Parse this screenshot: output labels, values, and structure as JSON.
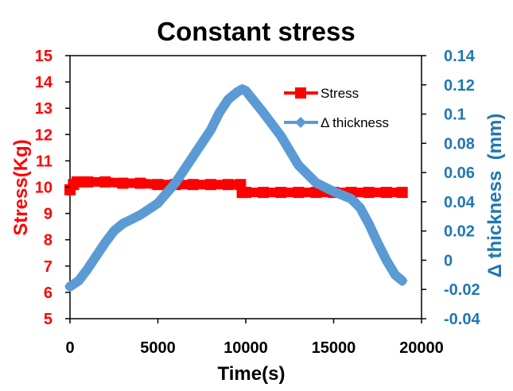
{
  "chart_data": {
    "type": "line",
    "title": "Constant stress",
    "xlabel": "Time(s)",
    "ylabel": "Stress(Kg)",
    "y2label": "Δ thickness  (mm)",
    "xlim": [
      0,
      20000
    ],
    "ylim": [
      5,
      15
    ],
    "y2lim": [
      -0.04,
      0.14
    ],
    "x_ticks": [
      "0",
      "5000",
      "10000",
      "15000",
      "20000"
    ],
    "y_ticks": [
      "5",
      "6",
      "7",
      "8",
      "9",
      "10",
      "11",
      "12",
      "13",
      "14",
      "15"
    ],
    "y2_ticks": [
      "-0.04",
      "-0.02",
      "0",
      "0.02",
      "0.04",
      "0.06",
      "0.08",
      "0.1",
      "0.12",
      "0.14"
    ],
    "legend_position": "top-right",
    "colors": {
      "stress": "#ff0000",
      "thickness": "#5b9bd5",
      "axis_left": "#ff0000",
      "axis_right": "#1f77b4"
    },
    "series": [
      {
        "name": "Stress",
        "axis": "left",
        "marker": "square",
        "x": [
          0,
          200,
          400,
          1000,
          2000,
          3000,
          4000,
          5000,
          6000,
          7000,
          8000,
          9000,
          9700,
          9800,
          10000,
          11000,
          12000,
          13000,
          14000,
          15000,
          16000,
          17000,
          18000,
          18900
        ],
        "values": [
          9.9,
          10.1,
          10.2,
          10.2,
          10.2,
          10.15,
          10.15,
          10.1,
          10.1,
          10.1,
          10.1,
          10.1,
          10.1,
          9.8,
          9.8,
          9.8,
          9.8,
          9.8,
          9.8,
          9.8,
          9.8,
          9.8,
          9.8,
          9.8
        ]
      },
      {
        "name": "Δ thickness",
        "axis": "right",
        "marker": "diamond",
        "x": [
          0,
          500,
          1000,
          1500,
          2000,
          2500,
          3000,
          4000,
          5000,
          6000,
          7000,
          8000,
          8500,
          9000,
          9500,
          9800,
          10000,
          11000,
          12000,
          13000,
          14000,
          15000,
          16000,
          16500,
          17000,
          17500,
          18000,
          18500,
          18900
        ],
        "values": [
          -0.018,
          -0.014,
          -0.006,
          0.003,
          0.012,
          0.02,
          0.025,
          0.031,
          0.039,
          0.053,
          0.071,
          0.089,
          0.101,
          0.11,
          0.115,
          0.117,
          0.116,
          0.101,
          0.085,
          0.065,
          0.053,
          0.047,
          0.042,
          0.036,
          0.025,
          0.012,
          0.0,
          -0.01,
          -0.014
        ]
      }
    ]
  }
}
